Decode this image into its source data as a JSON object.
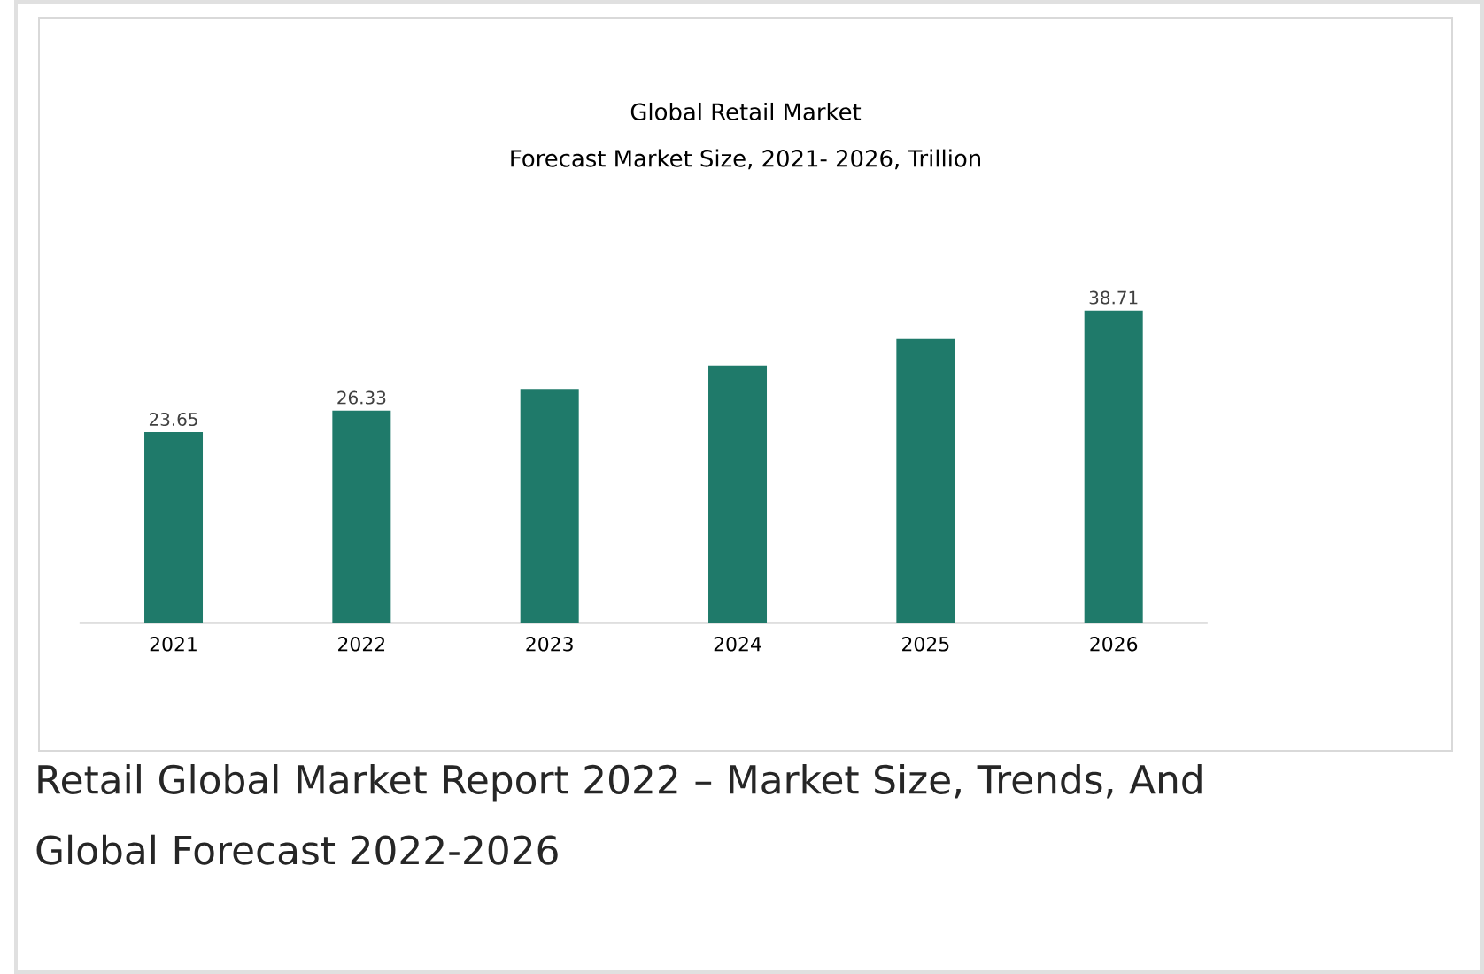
{
  "chart_data": {
    "type": "bar",
    "title": "Global Retail Market",
    "subtitle": "Forecast Market Size, 2021- 2026, Trillion",
    "categories": [
      "2021",
      "2022",
      "2023",
      "2024",
      "2025",
      "2026"
    ],
    "values": [
      23.65,
      26.33,
      29.0,
      31.9,
      35.2,
      38.71
    ],
    "value_labels": [
      "23.65",
      "26.33",
      null,
      null,
      null,
      "38.71"
    ],
    "color": "#1f7a6a",
    "annotations": [
      "Retail Global Market Report 2022 – Market Size, Trends, And Global Forecast 2022-2026"
    ]
  }
}
